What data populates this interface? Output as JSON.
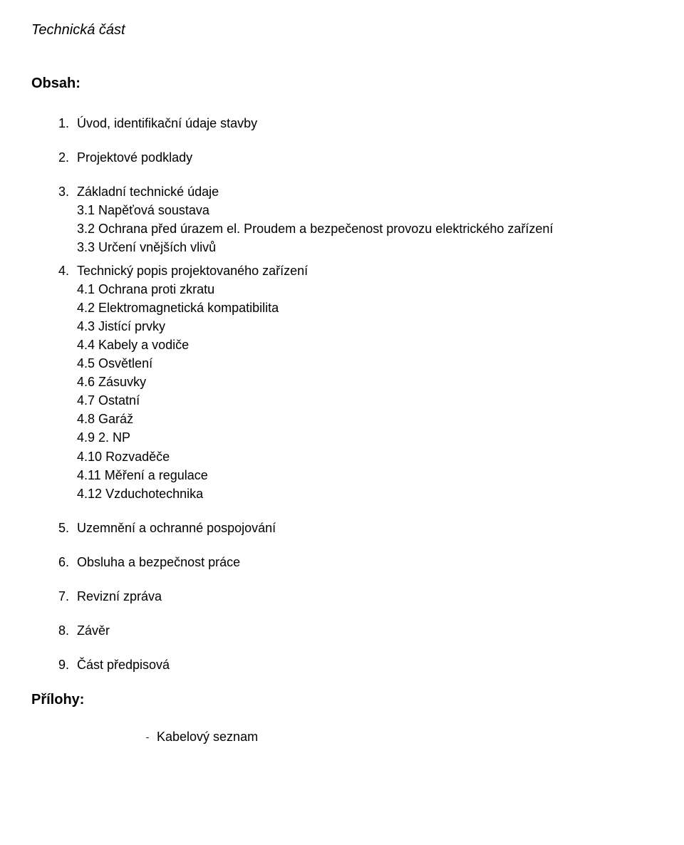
{
  "title": "Technická část",
  "heading": "Obsah:",
  "items": [
    {
      "num": "1.",
      "label": "Úvod, identifikační údaje stavby"
    },
    {
      "num": "2.",
      "label": "Projektové podklady"
    },
    {
      "num": "3.",
      "label": "Základní technické údaje",
      "subitems": [
        {
          "num": "3.1",
          "label": "Napěťová soustava"
        },
        {
          "num": "3.2",
          "label": "Ochrana před úrazem el. Proudem a bezpečenost provozu elektrického zařízení"
        },
        {
          "num": "3.3",
          "label": "Určení vnějších vlivů"
        }
      ]
    },
    {
      "num": "4.",
      "label": "Technický popis projektovaného zařízení",
      "subitems": [
        {
          "num": "4.1",
          "label": "Ochrana proti zkratu"
        },
        {
          "num": "4.2",
          "label": "Elektromagnetická kompatibilita"
        },
        {
          "num": "4.3",
          "label": "Jistící prvky"
        },
        {
          "num": "4.4",
          "label": "Kabely a vodiče"
        },
        {
          "num": "4.5",
          "label": "Osvětlení"
        },
        {
          "num": "4.6",
          "label": "Zásuvky"
        },
        {
          "num": "4.7",
          "label": "Ostatní"
        },
        {
          "num": "4.8",
          "label": "Garáž"
        },
        {
          "num": "4.9",
          "label": "2. NP"
        },
        {
          "num": "4.10",
          "label": "Rozvaděče"
        },
        {
          "num": "4.11",
          "label": "Měření a regulace"
        },
        {
          "num": "4.12",
          "label": "Vzduchotechnika"
        }
      ]
    },
    {
      "num": "5.",
      "label": "Uzemnění a ochranné pospojování"
    },
    {
      "num": "6.",
      "label": "Obsluha a bezpečnost práce"
    },
    {
      "num": "7.",
      "label": "Revizní zpráva"
    },
    {
      "num": "8.",
      "label": "Závěr"
    },
    {
      "num": "9.",
      "label": "Část předpisová"
    }
  ],
  "attachments_heading": "Přílohy:",
  "attachments": [
    {
      "label": "Kabelový seznam"
    }
  ]
}
